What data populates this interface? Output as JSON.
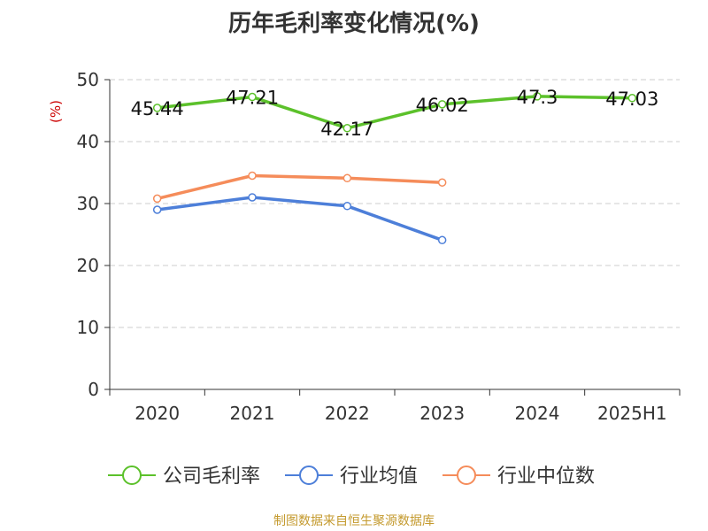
{
  "chart_data": {
    "type": "line",
    "title": "历年毛利率变化情况(%)",
    "ylabel": "(%)",
    "xlabel": "",
    "categories": [
      "2020",
      "2021",
      "2022",
      "2023",
      "2024",
      "2025H1"
    ],
    "ylim": [
      0,
      50
    ],
    "yticks": [
      0,
      10,
      20,
      30,
      40,
      50
    ],
    "grid": true,
    "legend_position": "bottom",
    "series": [
      {
        "name": "公司毛利率",
        "color": "#5cc12b",
        "values": [
          45.44,
          47.21,
          42.17,
          46.02,
          47.3,
          47.03
        ],
        "labels": [
          "45.44",
          "47.21",
          "42.17",
          "46.02",
          "47.3",
          "47.03"
        ]
      },
      {
        "name": "行业均值",
        "color": "#4d7fd9",
        "values": [
          29.0,
          31.0,
          29.6,
          24.1,
          null,
          null
        ]
      },
      {
        "name": "行业中位数",
        "color": "#f58c5a",
        "values": [
          30.8,
          34.5,
          34.1,
          33.4,
          null,
          null
        ]
      }
    ]
  },
  "footer": {
    "source": "制图数据来自恒生聚源数据库"
  }
}
